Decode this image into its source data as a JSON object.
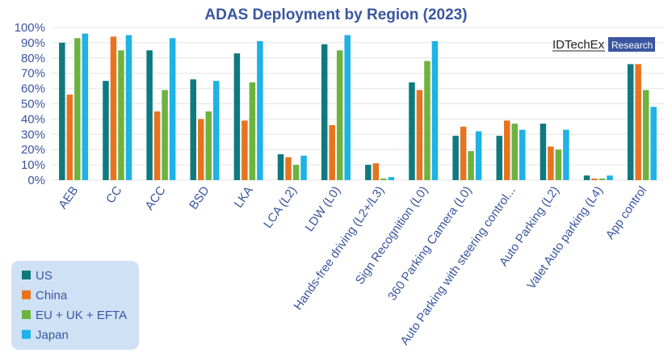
{
  "chart_data": {
    "type": "bar",
    "title": "ADAS Deployment by Region (2023)",
    "categories": [
      "AEB",
      "CC",
      "ACC",
      "BSD",
      "LKA",
      "LCA (L2)",
      "LDW (L0)",
      "Hands-free driving (L2+/L3)",
      "Sign Recognition (L0)",
      "360 Parking Camera (L0)",
      "Auto Parking with steering control...",
      "Auto Parking (L2)",
      "Valet Auto parking (L4)",
      "App control"
    ],
    "series": [
      {
        "name": "US",
        "color": "#0e7a80",
        "values": [
          90,
          65,
          85,
          66,
          83,
          17,
          89,
          10,
          64,
          29,
          29,
          37,
          3,
          76
        ]
      },
      {
        "name": "China",
        "color": "#e8731f",
        "values": [
          56,
          94,
          45,
          40,
          39,
          15,
          36,
          11,
          59,
          35,
          39,
          22,
          1,
          76
        ]
      },
      {
        "name": "EU + UK + EFTA",
        "color": "#6db33f",
        "values": [
          93,
          85,
          59,
          45,
          64,
          10,
          85,
          1,
          78,
          19,
          37,
          20,
          1,
          59
        ]
      },
      {
        "name": "Japan",
        "color": "#1eb2e6",
        "values": [
          96,
          95,
          93,
          65,
          91,
          16,
          95,
          2,
          91,
          32,
          33,
          33,
          3,
          48
        ]
      }
    ],
    "y_ticks": [
      "0%",
      "10%",
      "20%",
      "30%",
      "40%",
      "50%",
      "60%",
      "70%",
      "80%",
      "90%",
      "100%"
    ],
    "ylim": [
      0,
      100
    ],
    "xlabel": "",
    "ylabel": "",
    "grid": true,
    "legend_position": "bottom-left"
  },
  "logo": {
    "name": "IDTechEx",
    "badge": "Research"
  }
}
